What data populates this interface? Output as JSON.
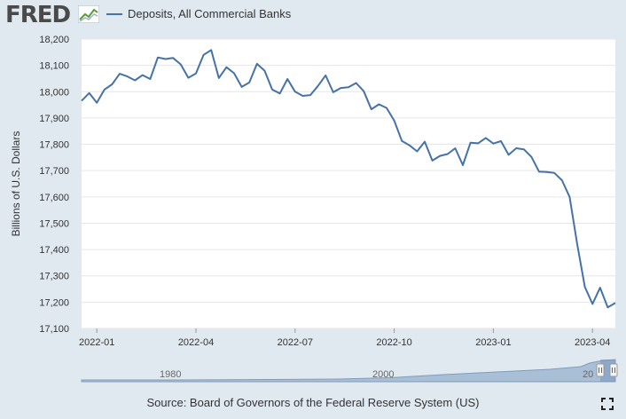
{
  "header": {
    "logo": "FRED",
    "legend_label": "Deposits, All Commercial Banks",
    "legend_color": "#4572a7"
  },
  "footer": {
    "source": "Source: Board of Governors of the Federal Reserve System (US)"
  },
  "navigator": {
    "labels": [
      "1980",
      "2000",
      "20"
    ]
  },
  "chart_data": {
    "type": "line",
    "title": "Deposits, All Commercial Banks",
    "xlabel": "",
    "ylabel": "Billions of U.S. Dollars",
    "ylim": [
      17100,
      18200
    ],
    "yticks": [
      17100,
      17200,
      17300,
      17400,
      17500,
      17600,
      17700,
      17800,
      17900,
      18000,
      18100,
      18200
    ],
    "ytick_labels": [
      "17,100",
      "17,200",
      "17,300",
      "17,400",
      "17,500",
      "17,600",
      "17,700",
      "17,800",
      "17,900",
      "18,000",
      "18,100",
      "18,200"
    ],
    "xticks": [
      {
        "label": "2022-01",
        "week": 2
      },
      {
        "label": "2022-04",
        "week": 15
      },
      {
        "label": "2022-07",
        "week": 28
      },
      {
        "label": "2022-10",
        "week": 41
      },
      {
        "label": "2023-01",
        "week": 54
      },
      {
        "label": "2023-04",
        "week": 67
      }
    ],
    "series": [
      {
        "name": "Deposits, All Commercial Banks",
        "color": "#4572a7",
        "values": [
          17965,
          17995,
          17958,
          18008,
          18028,
          18068,
          18058,
          18043,
          18063,
          18048,
          18130,
          18124,
          18128,
          18104,
          18053,
          18069,
          18140,
          18158,
          18052,
          18093,
          18070,
          18018,
          18035,
          18106,
          18080,
          18008,
          17993,
          18048,
          18000,
          17984,
          17987,
          18022,
          18062,
          17998,
          18014,
          18017,
          18033,
          18002,
          17933,
          17952,
          17938,
          17890,
          17813,
          17796,
          17773,
          17810,
          17738,
          17756,
          17763,
          17785,
          17721,
          17806,
          17804,
          17824,
          17803,
          17812,
          17760,
          17785,
          17781,
          17752,
          17696,
          17695,
          17691,
          17663,
          17600,
          17420,
          17258,
          17193,
          17255,
          17180,
          17197
        ]
      }
    ]
  }
}
